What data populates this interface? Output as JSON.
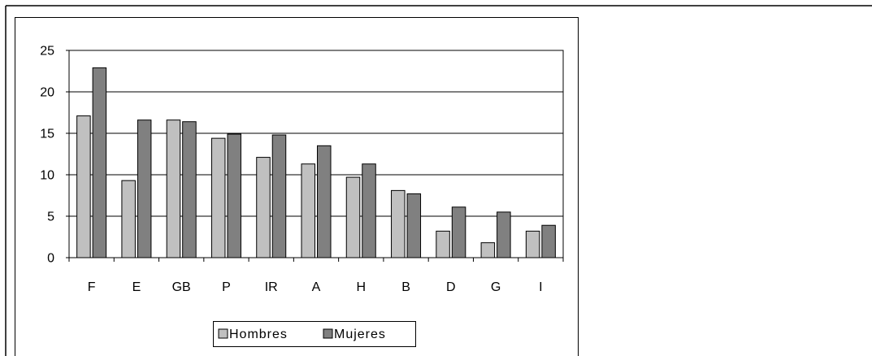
{
  "chart_data": {
    "type": "bar",
    "categories": [
      "F",
      "E",
      "GB",
      "P",
      "IR",
      "A",
      "H",
      "B",
      "D",
      "G",
      "I"
    ],
    "series": [
      {
        "name": "Hombres",
        "color": "#C0C0C0",
        "values": [
          17.1,
          9.3,
          16.6,
          14.4,
          12.1,
          11.3,
          9.7,
          8.1,
          3.2,
          1.8,
          3.2
        ]
      },
      {
        "name": "Mujeres",
        "color": "#808080",
        "values": [
          22.9,
          16.6,
          16.4,
          14.9,
          14.8,
          13.5,
          11.3,
          7.7,
          6.1,
          5.5,
          3.9
        ]
      }
    ],
    "y_ticks": [
      0,
      5,
      10,
      15,
      20,
      25
    ],
    "ylim": [
      0,
      25
    ],
    "grid": true,
    "legend_position": "bottom"
  }
}
